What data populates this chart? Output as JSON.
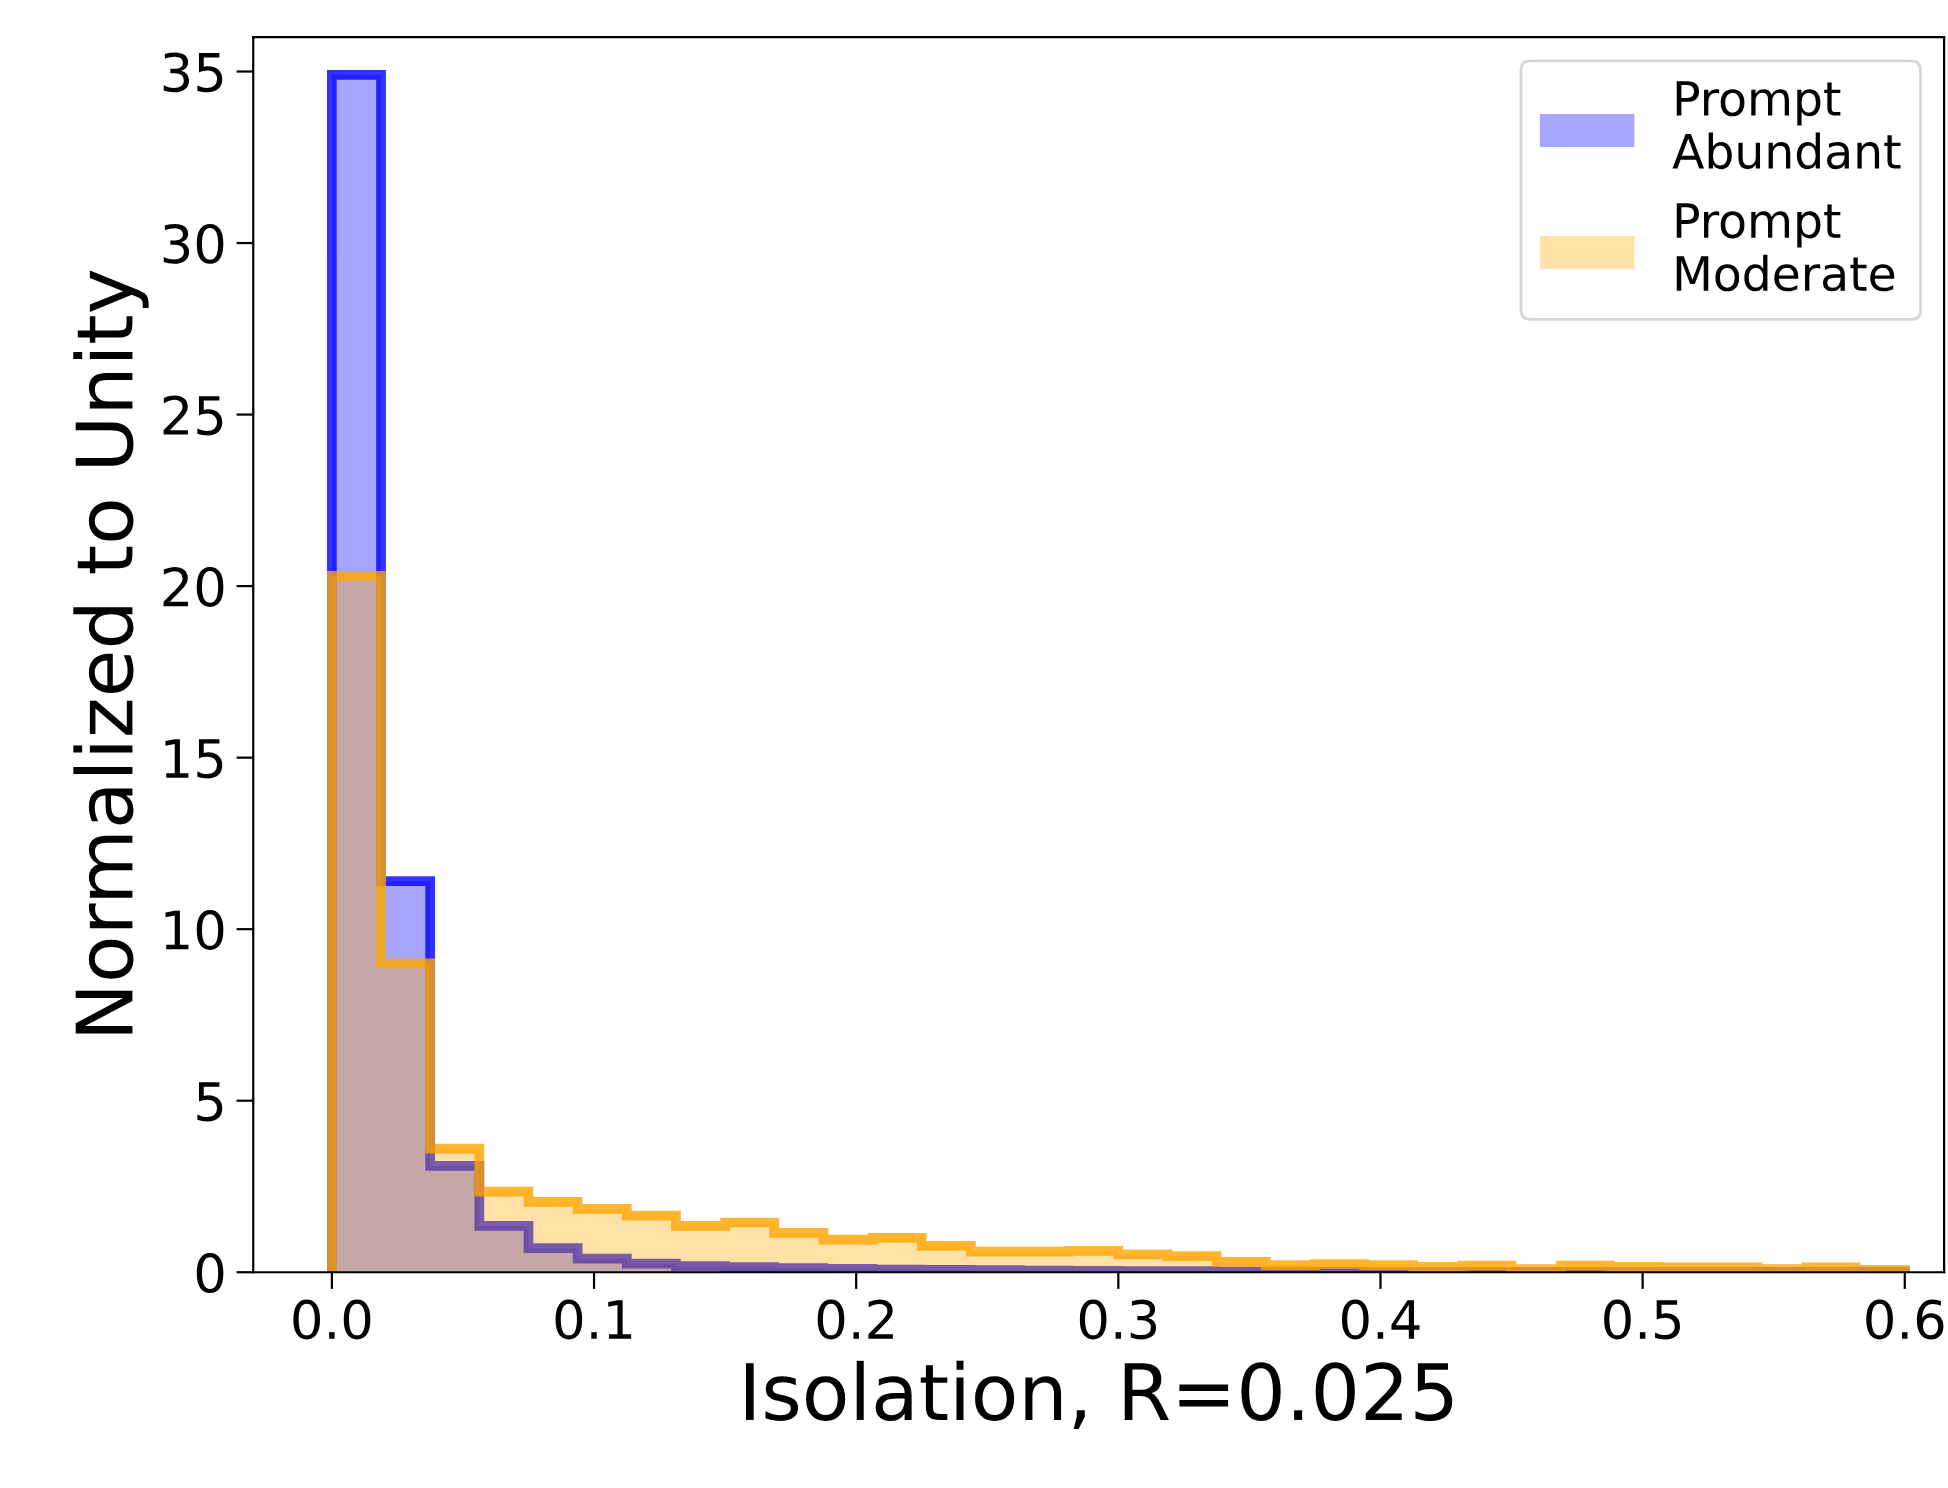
{
  "chart_data": {
    "type": "histogram",
    "xlabel": "Isolation, R=0.025",
    "ylabel": "Normalized to Unity",
    "bins": [
      0,
      0.01875,
      0.0375,
      0.05625,
      0.075,
      0.09375,
      0.1125,
      0.13125,
      0.15,
      0.16875,
      0.1875,
      0.20625,
      0.225,
      0.24375,
      0.2625,
      0.28125,
      0.3,
      0.31875,
      0.3375,
      0.35625,
      0.375,
      0.39375,
      0.4125,
      0.43125,
      0.45,
      0.46875,
      0.4875,
      0.50625,
      0.525,
      0.54375,
      0.5625,
      0.58125,
      0.6
    ],
    "series": [
      {
        "name": "Prompt\nAbundant",
        "color": "#0000ff",
        "values": [
          34.9,
          11.4,
          3.1,
          1.35,
          0.7,
          0.4,
          0.25,
          0.18,
          0.15,
          0.12,
          0.1,
          0.08,
          0.07,
          0.06,
          0.05,
          0.04,
          0.03,
          0.03,
          0.02,
          0.02,
          0.02,
          0.01,
          0.01,
          0.01,
          0.01,
          0.01,
          0.01,
          0.01,
          0.01,
          0.01,
          0.01,
          0.01
        ]
      },
      {
        "name": "Prompt\nModerate",
        "color": "#ffa500",
        "values": [
          20.3,
          9.0,
          3.6,
          2.35,
          2.05,
          1.85,
          1.65,
          1.35,
          1.45,
          1.15,
          0.95,
          1.0,
          0.77,
          0.6,
          0.6,
          0.62,
          0.52,
          0.47,
          0.3,
          0.21,
          0.24,
          0.21,
          0.16,
          0.19,
          0.09,
          0.19,
          0.16,
          0.14,
          0.14,
          0.09,
          0.14,
          0.07
        ]
      }
    ],
    "xlim": [
      -0.03,
      0.615
    ],
    "ylim": [
      0,
      36
    ],
    "xticks": [
      {
        "value": 0,
        "label": "0.0"
      },
      0.1,
      0.2,
      0.3,
      0.4,
      0.5,
      0.6
    ],
    "yticks": [
      0,
      5,
      10,
      15,
      20,
      25,
      30,
      35
    ],
    "legend": "top right",
    "grid": false
  }
}
